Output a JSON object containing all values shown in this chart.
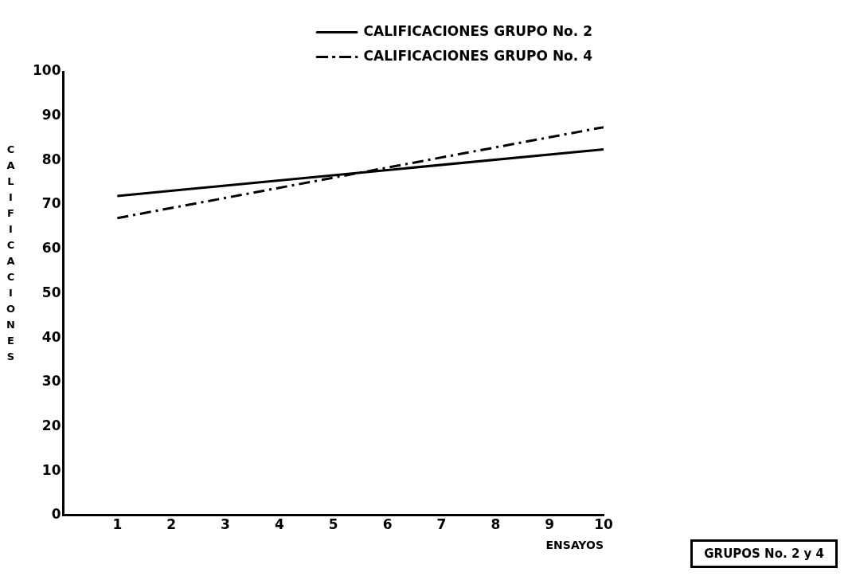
{
  "chart_data": {
    "type": "line",
    "xlabel": "ENSAYOS",
    "ylabel": "CALIFICACIONES",
    "x": [
      1,
      10
    ],
    "series": [
      {
        "name": "CALIFICACIONES GRUPO No. 2",
        "color": "#000000",
        "values": [
          72,
          82.5
        ],
        "line_style": "solid"
      },
      {
        "name": "CALIFICACIONES GRUPO No. 4",
        "color": "#000000",
        "values": [
          67,
          87.5
        ],
        "line_style": "dashed"
      }
    ],
    "xlim": [
      0,
      10
    ],
    "xticks": [
      1,
      2,
      3,
      4,
      5,
      6,
      7,
      8,
      9,
      10
    ],
    "ylim": [
      0,
      100
    ],
    "yticks": [
      0,
      10,
      20,
      30,
      40,
      50,
      60,
      70,
      80,
      90,
      100
    ],
    "grid": false,
    "legend": "top right",
    "marker": "none",
    "annotations": [
      "GRUPOS No. 2 y 4"
    ]
  }
}
